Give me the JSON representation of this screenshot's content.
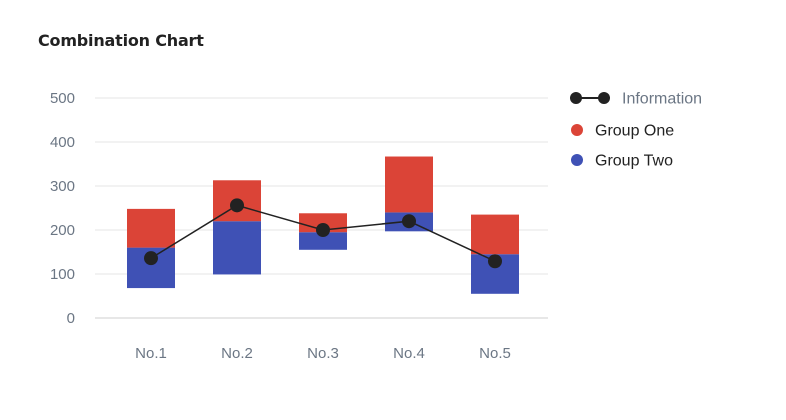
{
  "chart_data": {
    "type": "bar",
    "title": "Combination Chart",
    "categories": [
      "No.1",
      "No.2",
      "No.3",
      "No.4",
      "No.5"
    ],
    "series": [
      {
        "name": "Group Two",
        "kind": "floating-bar",
        "color": "#3f51b5",
        "ranges": [
          [
            68,
            160
          ],
          [
            99,
            220
          ],
          [
            155,
            195
          ],
          [
            197,
            240
          ],
          [
            55,
            145
          ]
        ]
      },
      {
        "name": "Group One",
        "kind": "floating-bar",
        "color": "#db4437",
        "ranges": [
          [
            160,
            248
          ],
          [
            220,
            313
          ],
          [
            195,
            238
          ],
          [
            240,
            367
          ],
          [
            145,
            235
          ]
        ]
      },
      {
        "name": "Information",
        "kind": "line",
        "color": "#222222",
        "values": [
          136,
          256,
          200,
          220,
          129
        ]
      }
    ],
    "ylim": [
      0,
      500
    ],
    "yticks": [
      0,
      100,
      200,
      300,
      400,
      500
    ],
    "grid": true,
    "legend": {
      "position": "right",
      "entries": [
        "Information",
        "Group One",
        "Group Two"
      ]
    },
    "xlabel": "",
    "ylabel": ""
  }
}
